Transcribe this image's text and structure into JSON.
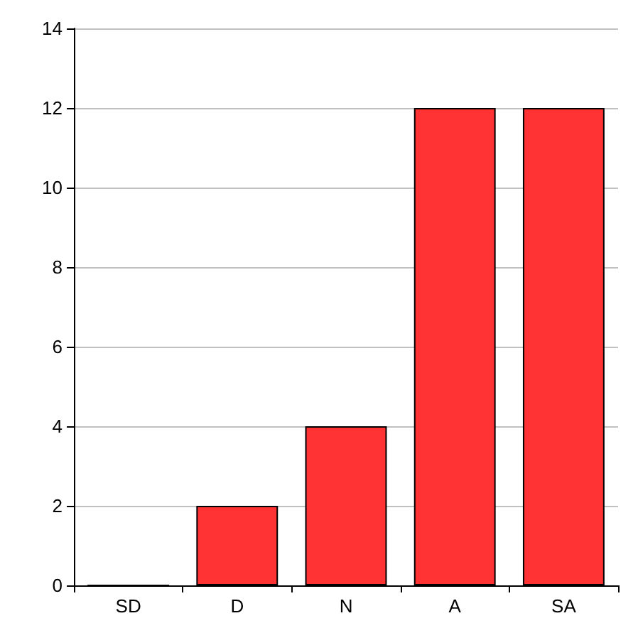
{
  "chart_data": {
    "type": "bar",
    "categories": [
      "SD",
      "D",
      "N",
      "A",
      "SA"
    ],
    "values": [
      0,
      2,
      4,
      12,
      12
    ],
    "color": "#ff3333",
    "ylim": [
      0,
      14
    ],
    "yticks": [
      0,
      2,
      4,
      6,
      8,
      10,
      12,
      14
    ],
    "grid": "y"
  }
}
